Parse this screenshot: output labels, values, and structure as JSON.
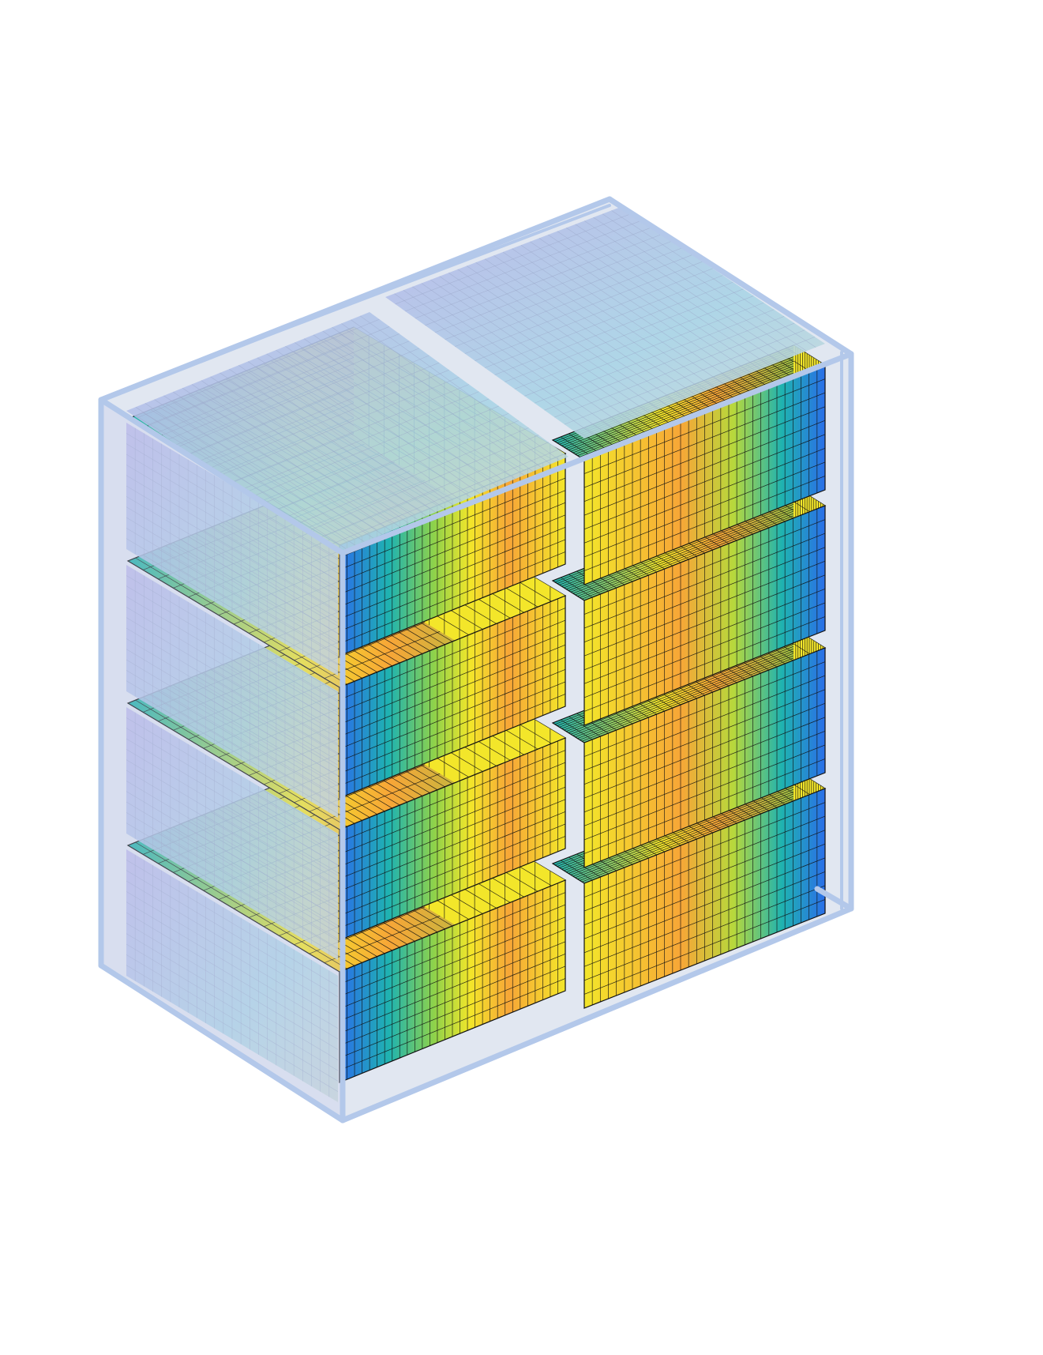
{
  "figure": {
    "description_visible_text": "",
    "layout": {
      "rows": 4,
      "columns": 2
    },
    "colormap": [
      "#2a6fe8",
      "#1fb3b0",
      "#7ccd4a",
      "#f3e62a",
      "#f7a637"
    ],
    "colors": {
      "enclosure_edge": "#b3c8ea",
      "enclosure_fill": "#c9d3e6",
      "mesh_line": "#111111",
      "faded_mesh_line": "#9aa6c8",
      "faded_overlay": "#c3c9ea"
    }
  }
}
